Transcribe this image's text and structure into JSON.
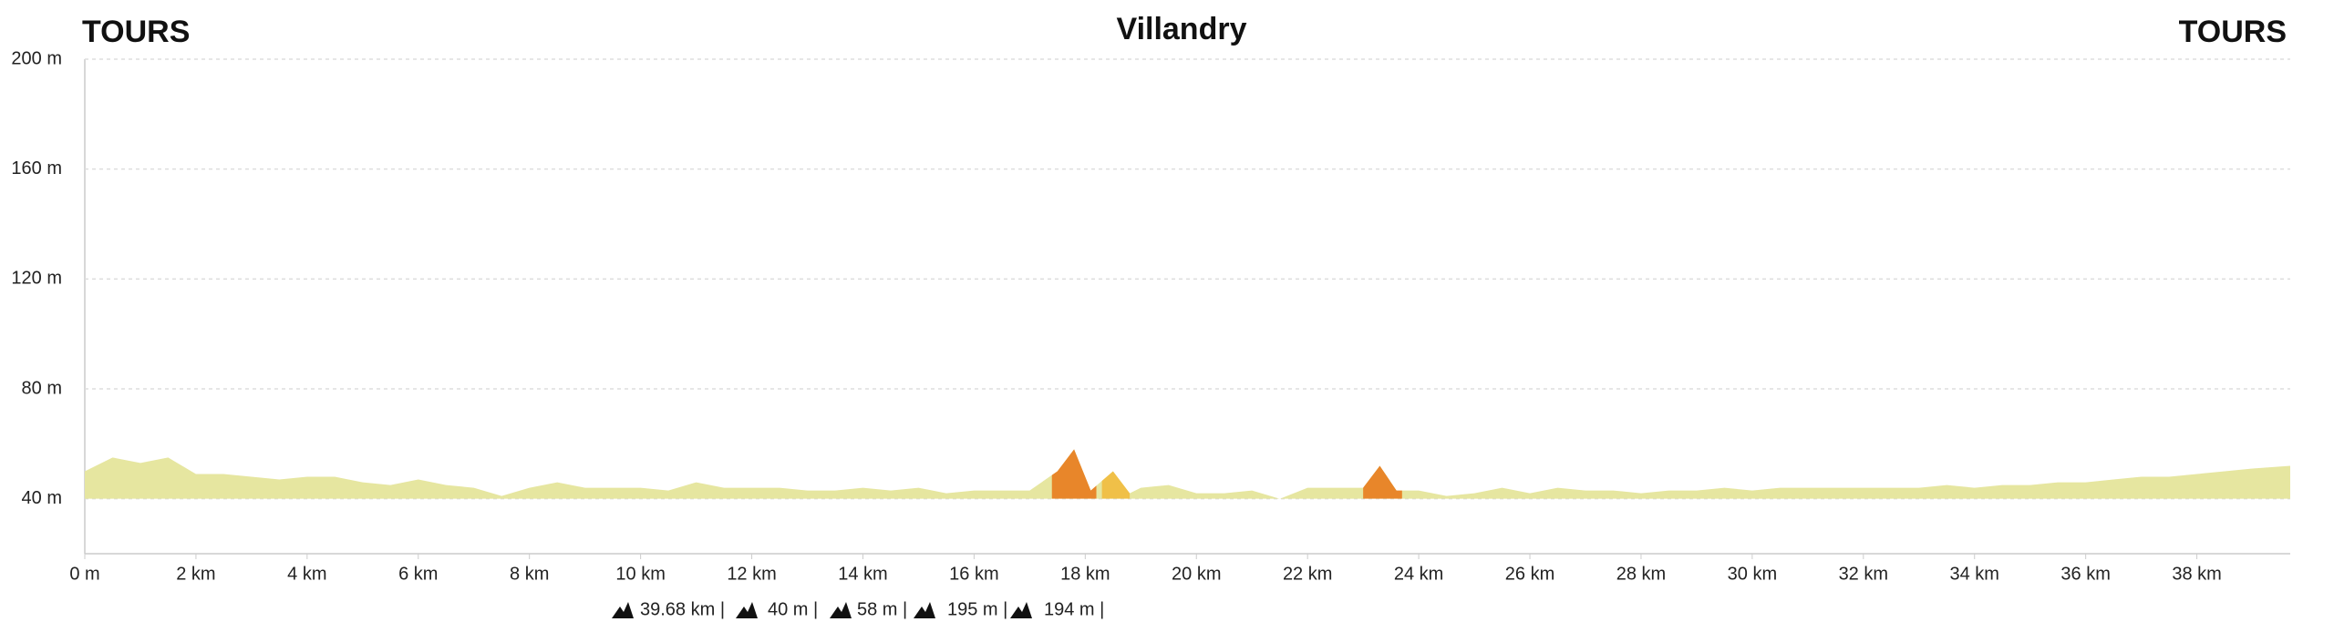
{
  "chart_data": {
    "type": "area",
    "title": "Villandry",
    "start_label": "TOURS",
    "end_label": "TOURS",
    "x": [
      0,
      0.5,
      1,
      1.5,
      2,
      2.5,
      3,
      3.5,
      4,
      4.5,
      5,
      5.5,
      6,
      6.5,
      7,
      7.5,
      8,
      8.5,
      9,
      9.5,
      10,
      10.5,
      11,
      11.5,
      12,
      12.5,
      13,
      13.5,
      14,
      14.5,
      15,
      15.5,
      16,
      16.5,
      17,
      17.5,
      17.8,
      18.1,
      18.5,
      18.8,
      19,
      19.5,
      20,
      20.5,
      21,
      21.5,
      22,
      22.5,
      23,
      23.3,
      23.6,
      24,
      24.5,
      25,
      25.5,
      26,
      26.5,
      27,
      27.5,
      28,
      28.5,
      29,
      29.5,
      30,
      30.5,
      31,
      31.5,
      32,
      32.5,
      33,
      33.5,
      34,
      34.5,
      35,
      35.5,
      36,
      36.5,
      37,
      37.5,
      38,
      38.5,
      39,
      39.68
    ],
    "values": [
      50,
      55,
      53,
      55,
      49,
      49,
      48,
      47,
      48,
      48,
      46,
      45,
      47,
      45,
      44,
      41,
      44,
      46,
      44,
      44,
      44,
      43,
      46,
      44,
      44,
      44,
      43,
      43,
      44,
      43,
      44,
      42,
      43,
      43,
      43,
      50,
      58,
      43,
      50,
      42,
      44,
      45,
      42,
      42,
      43,
      40,
      44,
      44,
      44,
      52,
      43,
      43,
      41,
      42,
      44,
      42,
      44,
      43,
      43,
      42,
      43,
      43,
      44,
      43,
      44,
      44,
      44,
      44,
      44,
      44,
      45,
      44,
      45,
      45,
      46,
      46,
      47,
      48,
      48,
      49,
      50,
      51,
      52
    ],
    "color": "#e6e6a0",
    "climbs": [
      {
        "from": 17.4,
        "to": 18.2,
        "color": "#e8862a"
      },
      {
        "from": 18.3,
        "to": 18.8,
        "color": "#f0c048"
      },
      {
        "from": 23.0,
        "to": 23.7,
        "color": "#e8862a"
      }
    ],
    "xlim": [
      0,
      39.68
    ],
    "ylim": [
      20,
      200
    ],
    "xticks": [
      {
        "value": 0,
        "label": "0 m"
      },
      {
        "value": 2,
        "label": "2 km"
      },
      {
        "value": 4,
        "label": "4 km"
      },
      {
        "value": 6,
        "label": "6 km"
      },
      {
        "value": 8,
        "label": "8 km"
      },
      {
        "value": 10,
        "label": "10 km"
      },
      {
        "value": 12,
        "label": "12 km"
      },
      {
        "value": 14,
        "label": "14 km"
      },
      {
        "value": 16,
        "label": "16 km"
      },
      {
        "value": 18,
        "label": "18 km"
      },
      {
        "value": 20,
        "label": "20 km"
      },
      {
        "value": 22,
        "label": "22 km"
      },
      {
        "value": 24,
        "label": "24 km"
      },
      {
        "value": 26,
        "label": "26 km"
      },
      {
        "value": 28,
        "label": "28 km"
      },
      {
        "value": 30,
        "label": "30 km"
      },
      {
        "value": 32,
        "label": "32 km"
      },
      {
        "value": 34,
        "label": "34 km"
      },
      {
        "value": 36,
        "label": "36 km"
      },
      {
        "value": 38,
        "label": "38 km"
      }
    ],
    "yticks": [
      {
        "value": 40,
        "label": "40 m"
      },
      {
        "value": 80,
        "label": "80 m"
      },
      {
        "value": 120,
        "label": "120 m"
      },
      {
        "value": 160,
        "label": "160 m"
      },
      {
        "value": 200,
        "label": "200 m"
      }
    ],
    "grid": true,
    "stats": [
      "39.68 km |",
      "40 m |",
      "58 m |",
      "195 m |",
      "194 m |"
    ]
  }
}
